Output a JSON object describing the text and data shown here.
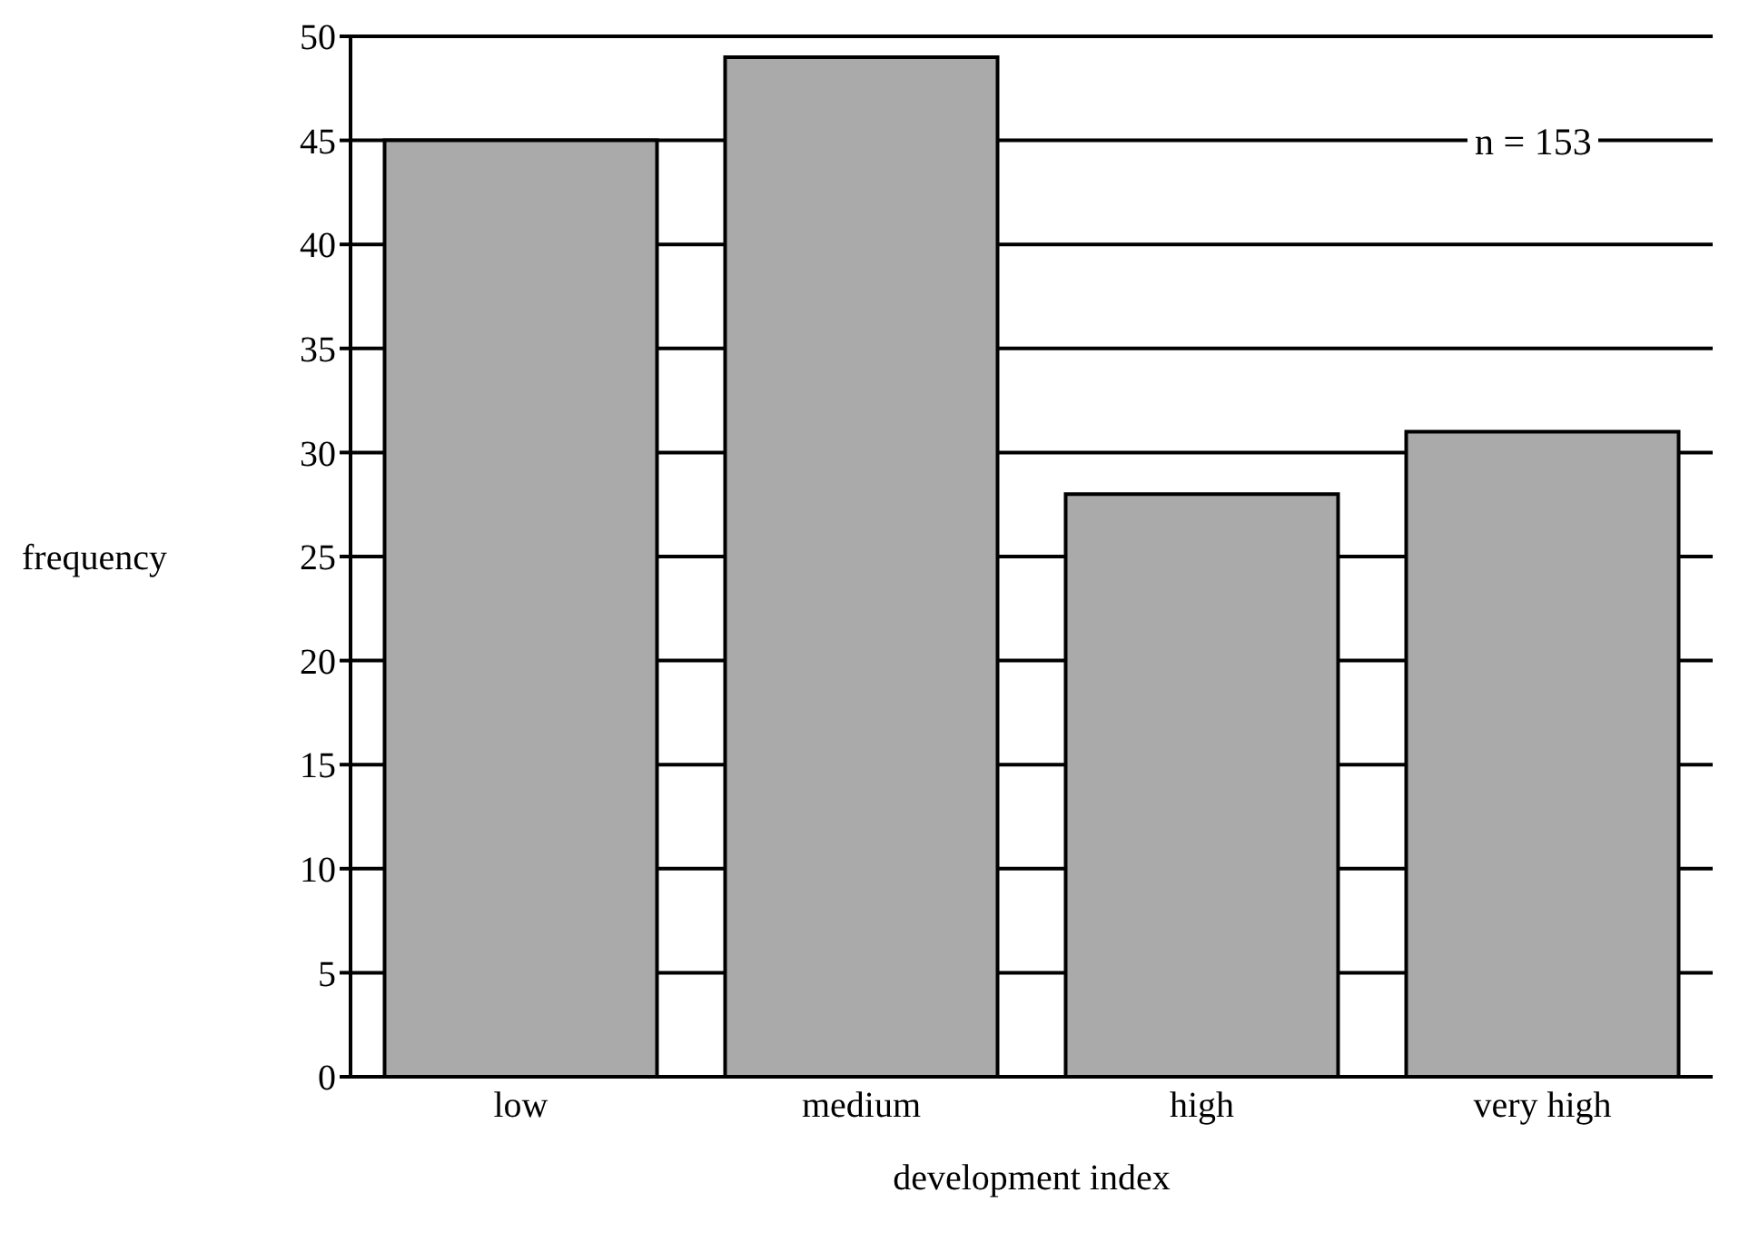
{
  "chart_data": {
    "type": "bar",
    "xlabel": "development index",
    "ylabel": "frequency",
    "categories": [
      "low",
      "medium",
      "high",
      "very high"
    ],
    "values": [
      45,
      49,
      28,
      31
    ],
    "color": "#aaaaaa",
    "ylim": [
      0,
      50
    ],
    "yticks": [
      0,
      5,
      10,
      15,
      20,
      25,
      30,
      35,
      40,
      45,
      50
    ],
    "grid": "y",
    "annotations": [
      "n = 153"
    ]
  }
}
